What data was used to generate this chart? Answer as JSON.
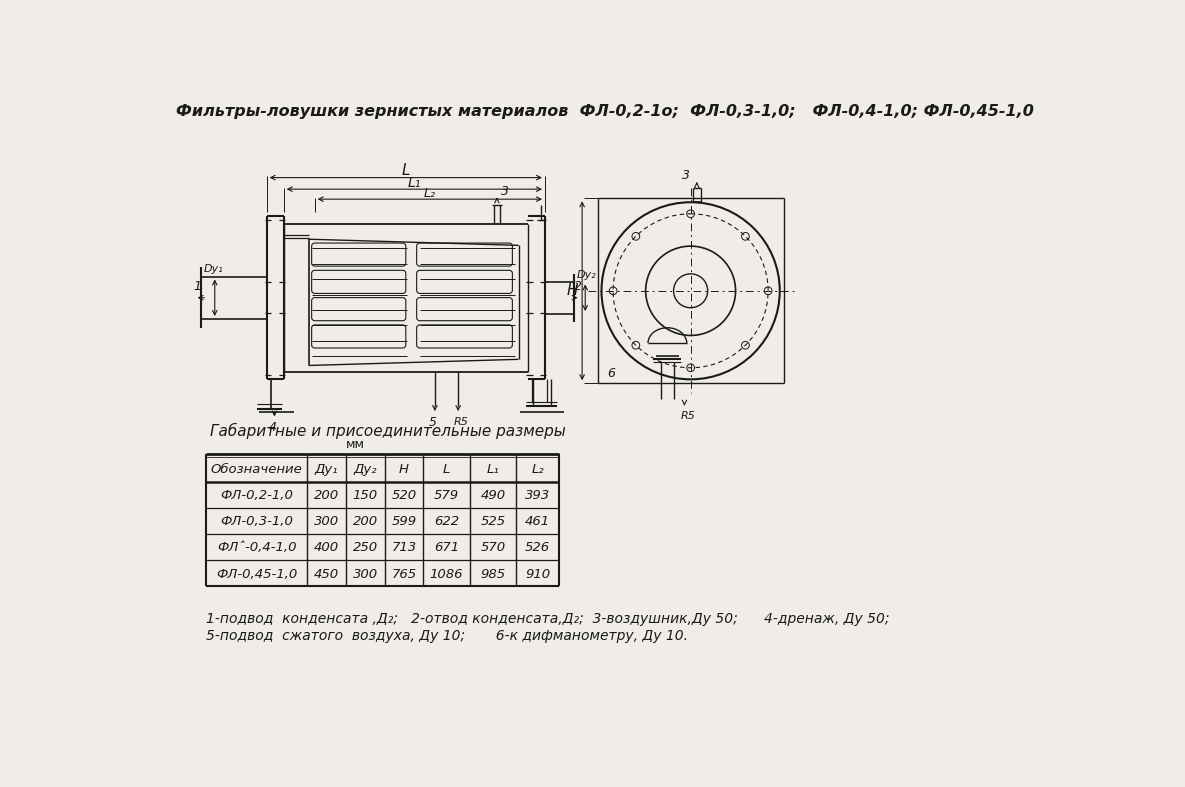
{
  "title": "Фильтры-ловушки зернистых материалов  ФЛ-0,2-1о;  ФЛ-0,3-1,0;   ФЛ-0,4-1,0; ФЛ-0,45-1,0",
  "bg_color": "#f0ede8",
  "table_title": "Габаритные и присоединительные размеры",
  "table_subtitle": "мм",
  "col_headers": [
    "Обозначение",
    "Ду₁",
    "Ду₂",
    "Н",
    "L",
    "L₁",
    "L₂"
  ],
  "table_data": [
    [
      "ФЛ-0,2-1,0",
      "200",
      "150",
      "520",
      "579",
      "490",
      "393"
    ],
    [
      "ФЛ-0,3-1,0",
      "300",
      "200",
      "599",
      "622",
      "525",
      "461"
    ],
    [
      "ФЛˆ-0,4-1,0",
      "400",
      "250",
      "713",
      "671",
      "570",
      "526"
    ],
    [
      "ФЛ-0,45-1,0",
      "450",
      "300",
      "765",
      "1086",
      "985",
      "910"
    ]
  ],
  "footnote_line1": "1-подвод  конденсата ,Д₂;   2-отвод конденсата,Д₂;  3-воздушник,Ду 50;      4-дренаж, Ду 50;",
  "footnote_line2": "5-подвод  сжатого  воздуха, Ду 10;       6-к дифманометру, Ду 10.",
  "line_color": "#1a1a1a",
  "text_color": "#1a1a1a"
}
